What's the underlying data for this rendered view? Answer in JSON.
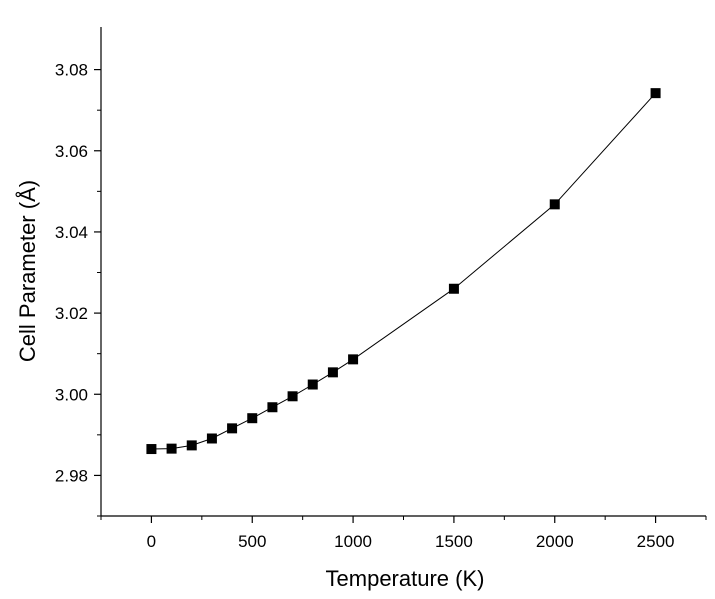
{
  "chart_data": {
    "type": "line",
    "xlabel": "Temperature (K)",
    "ylabel": "Cell Parameter (Å)",
    "xlim": [
      -250,
      2750
    ],
    "ylim": [
      2.97,
      3.0905
    ],
    "x_ticks": [
      0,
      500,
      1000,
      1500,
      2000,
      2500
    ],
    "x_tick_labels": [
      "0",
      "500",
      "1000",
      "1500",
      "2000",
      "2500"
    ],
    "y_ticks": [
      2.98,
      3.0,
      3.02,
      3.04,
      3.06,
      3.08
    ],
    "y_tick_labels": [
      "2.98",
      "3.00",
      "3.02",
      "3.04",
      "3.06",
      "3.08"
    ],
    "grid": false,
    "legend": "none",
    "marker": "square",
    "series": [
      {
        "color": "#000000",
        "x": [
          0,
          100,
          200,
          300,
          400,
          500,
          600,
          700,
          800,
          900,
          1000,
          1500,
          2000,
          2500
        ],
        "y": [
          2.9865,
          2.9866,
          2.9874,
          2.9891,
          2.9916,
          2.9941,
          2.9968,
          2.9995,
          3.0024,
          3.0054,
          3.0086,
          3.026,
          3.0468,
          3.0742
        ]
      }
    ]
  }
}
